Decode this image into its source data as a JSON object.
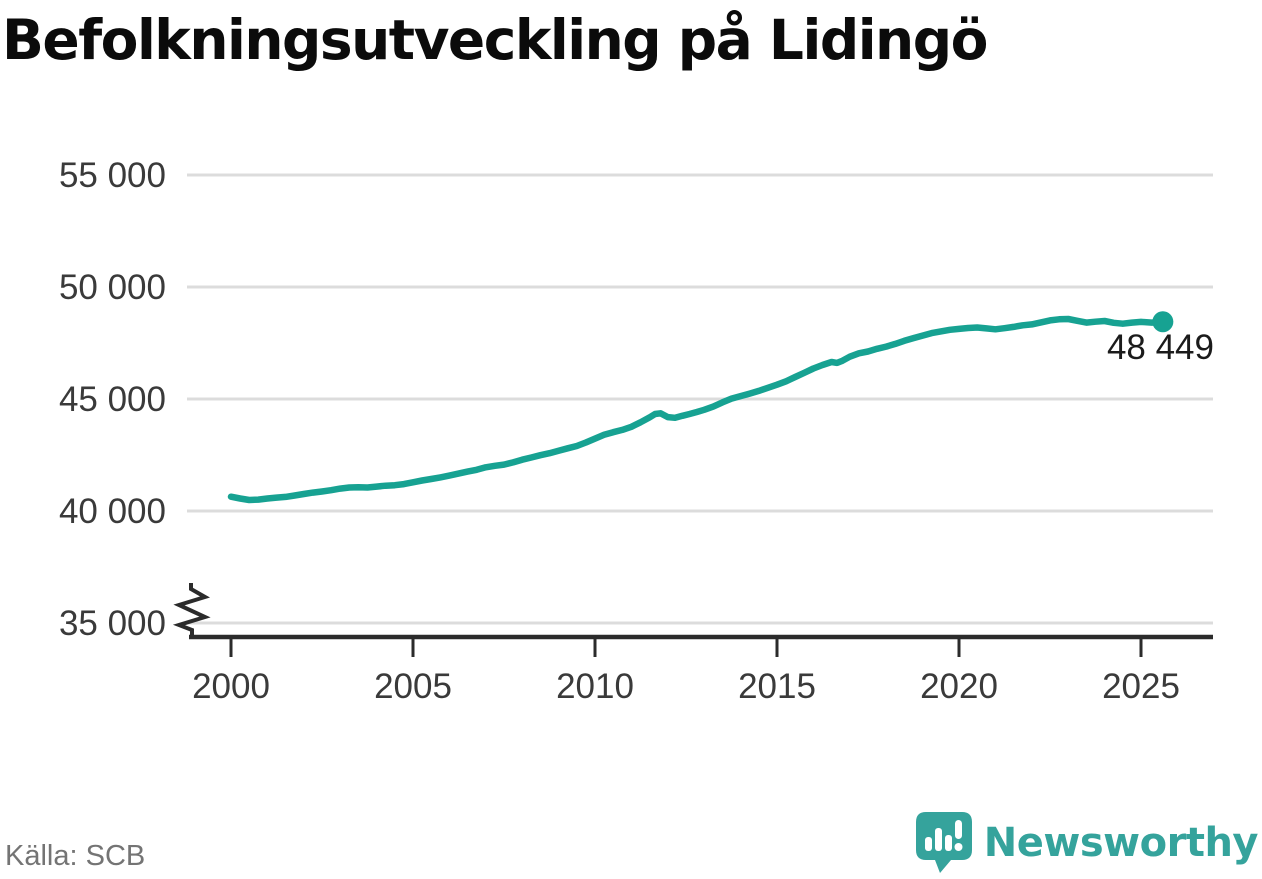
{
  "title": "Befolkningsutveckling på Lidingö",
  "source": "Källa: SCB",
  "logo": {
    "text": "Newsworthy",
    "color": "#35a39c",
    "icon": "newsworthy-speech-bubble-bar-chart-icon"
  },
  "colors": {
    "line": "#17a292",
    "grid": "#dcdcdc",
    "axis": "#2b2b2b",
    "tick_label": "#3a3a3a",
    "value_label": "#1b1b1b",
    "title": "#0b0b0b",
    "source": "#747474"
  },
  "chart_data": {
    "type": "line",
    "title": "Befolkningsutveckling på Lidingö",
    "xlabel": "",
    "ylabel": "",
    "xlim": [
      2000,
      2027
    ],
    "ylim": [
      35000,
      55000
    ],
    "axis_break": true,
    "grid": "horizontal",
    "legend_position": "none",
    "xticks": [
      2000,
      2005,
      2010,
      2015,
      2020,
      2025
    ],
    "xtick_labels": [
      "2000",
      "2005",
      "2010",
      "2015",
      "2020",
      "2025"
    ],
    "yticks": [
      35000,
      40000,
      45000,
      50000,
      55000
    ],
    "ytick_labels": [
      "35 000",
      "40 000",
      "45 000",
      "50 000",
      "55 000"
    ],
    "end_label": "48 449",
    "end_point": [
      2025.6,
      48449
    ],
    "series": [
      {
        "name": "Befolkning Lidingö",
        "points": [
          [
            2000.0,
            40640
          ],
          [
            2000.25,
            40560
          ],
          [
            2000.5,
            40490
          ],
          [
            2000.75,
            40510
          ],
          [
            2001.0,
            40560
          ],
          [
            2001.25,
            40600
          ],
          [
            2001.5,
            40630
          ],
          [
            2001.75,
            40690
          ],
          [
            2002.0,
            40760
          ],
          [
            2002.25,
            40820
          ],
          [
            2002.5,
            40870
          ],
          [
            2002.75,
            40930
          ],
          [
            2003.0,
            41000
          ],
          [
            2003.25,
            41050
          ],
          [
            2003.5,
            41060
          ],
          [
            2003.75,
            41050
          ],
          [
            2004.0,
            41090
          ],
          [
            2004.25,
            41130
          ],
          [
            2004.5,
            41150
          ],
          [
            2004.75,
            41200
          ],
          [
            2005.0,
            41280
          ],
          [
            2005.25,
            41360
          ],
          [
            2005.5,
            41430
          ],
          [
            2005.75,
            41500
          ],
          [
            2006.0,
            41580
          ],
          [
            2006.25,
            41670
          ],
          [
            2006.5,
            41760
          ],
          [
            2006.75,
            41840
          ],
          [
            2007.0,
            41950
          ],
          [
            2007.25,
            42020
          ],
          [
            2007.5,
            42070
          ],
          [
            2007.75,
            42170
          ],
          [
            2008.0,
            42290
          ],
          [
            2008.25,
            42390
          ],
          [
            2008.5,
            42490
          ],
          [
            2008.75,
            42580
          ],
          [
            2009.0,
            42690
          ],
          [
            2009.25,
            42800
          ],
          [
            2009.5,
            42900
          ],
          [
            2009.75,
            43060
          ],
          [
            2010.0,
            43230
          ],
          [
            2010.25,
            43400
          ],
          [
            2010.5,
            43520
          ],
          [
            2010.75,
            43620
          ],
          [
            2011.0,
            43760
          ],
          [
            2011.25,
            43960
          ],
          [
            2011.5,
            44180
          ],
          [
            2011.65,
            44330
          ],
          [
            2011.8,
            44360
          ],
          [
            2012.0,
            44190
          ],
          [
            2012.2,
            44160
          ],
          [
            2012.4,
            44250
          ],
          [
            2012.6,
            44330
          ],
          [
            2012.8,
            44420
          ],
          [
            2013.0,
            44520
          ],
          [
            2013.25,
            44660
          ],
          [
            2013.5,
            44850
          ],
          [
            2013.75,
            45020
          ],
          [
            2014.0,
            45130
          ],
          [
            2014.25,
            45240
          ],
          [
            2014.5,
            45360
          ],
          [
            2014.75,
            45500
          ],
          [
            2015.0,
            45640
          ],
          [
            2015.25,
            45790
          ],
          [
            2015.5,
            45980
          ],
          [
            2015.75,
            46170
          ],
          [
            2016.0,
            46360
          ],
          [
            2016.25,
            46520
          ],
          [
            2016.5,
            46650
          ],
          [
            2016.65,
            46610
          ],
          [
            2016.8,
            46710
          ],
          [
            2017.0,
            46890
          ],
          [
            2017.25,
            47040
          ],
          [
            2017.5,
            47120
          ],
          [
            2017.75,
            47240
          ],
          [
            2018.0,
            47340
          ],
          [
            2018.25,
            47460
          ],
          [
            2018.5,
            47600
          ],
          [
            2018.75,
            47720
          ],
          [
            2019.0,
            47830
          ],
          [
            2019.25,
            47940
          ],
          [
            2019.5,
            48020
          ],
          [
            2019.75,
            48090
          ],
          [
            2020.0,
            48130
          ],
          [
            2020.25,
            48170
          ],
          [
            2020.5,
            48190
          ],
          [
            2020.75,
            48150
          ],
          [
            2021.0,
            48110
          ],
          [
            2021.25,
            48160
          ],
          [
            2021.5,
            48220
          ],
          [
            2021.75,
            48290
          ],
          [
            2022.0,
            48330
          ],
          [
            2022.25,
            48420
          ],
          [
            2022.5,
            48510
          ],
          [
            2022.75,
            48560
          ],
          [
            2023.0,
            48570
          ],
          [
            2023.25,
            48490
          ],
          [
            2023.5,
            48410
          ],
          [
            2023.75,
            48450
          ],
          [
            2024.0,
            48480
          ],
          [
            2024.25,
            48400
          ],
          [
            2024.5,
            48360
          ],
          [
            2024.75,
            48410
          ],
          [
            2025.0,
            48440
          ],
          [
            2025.3,
            48410
          ],
          [
            2025.6,
            48449
          ]
        ]
      }
    ]
  }
}
